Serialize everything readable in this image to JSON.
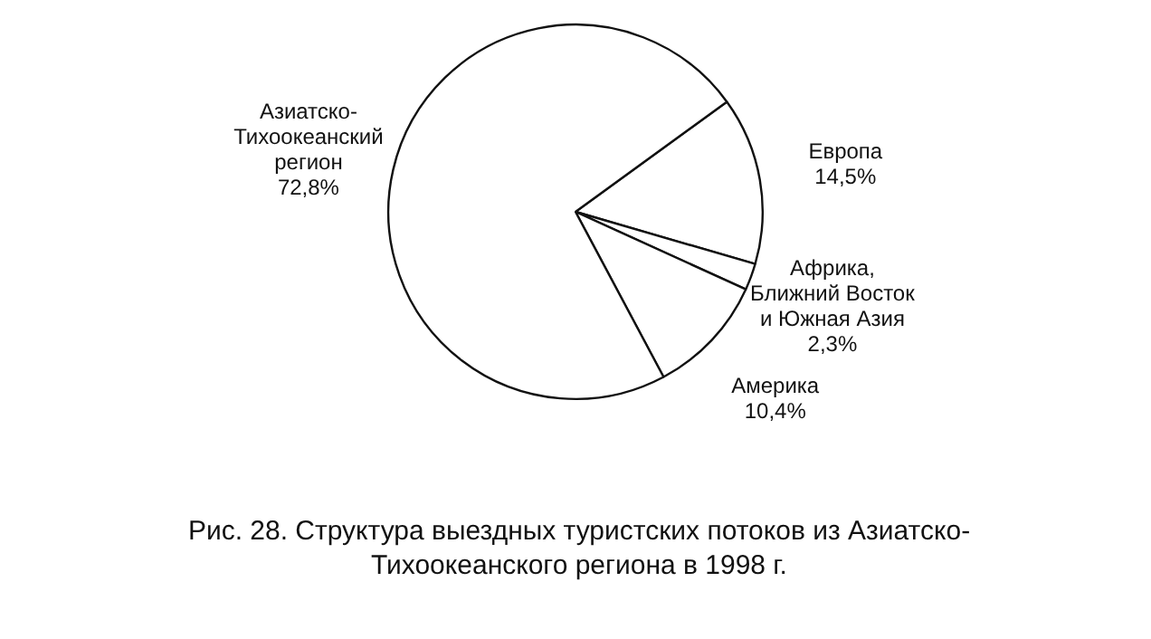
{
  "chart_data": {
    "type": "pie",
    "title": "Рис. 28. Структура выездных туристских потоков из Азиатско-Тихоокеанского региона в 1998 г.",
    "categories": [
      "Европа",
      "Африка,\nБлижний Восток\nи Южная Азия",
      "Америка",
      "Азиатско-\nТихоокеанский\nрегион"
    ],
    "values": [
      14.5,
      2.3,
      10.4,
      72.8
    ],
    "value_labels": [
      "14,5%",
      "2,3%",
      "10,4%",
      "72,8%"
    ],
    "colors": [
      "#ffffff",
      "#ffffff",
      "#ffffff",
      "#ffffff"
    ],
    "legend": false
  }
}
